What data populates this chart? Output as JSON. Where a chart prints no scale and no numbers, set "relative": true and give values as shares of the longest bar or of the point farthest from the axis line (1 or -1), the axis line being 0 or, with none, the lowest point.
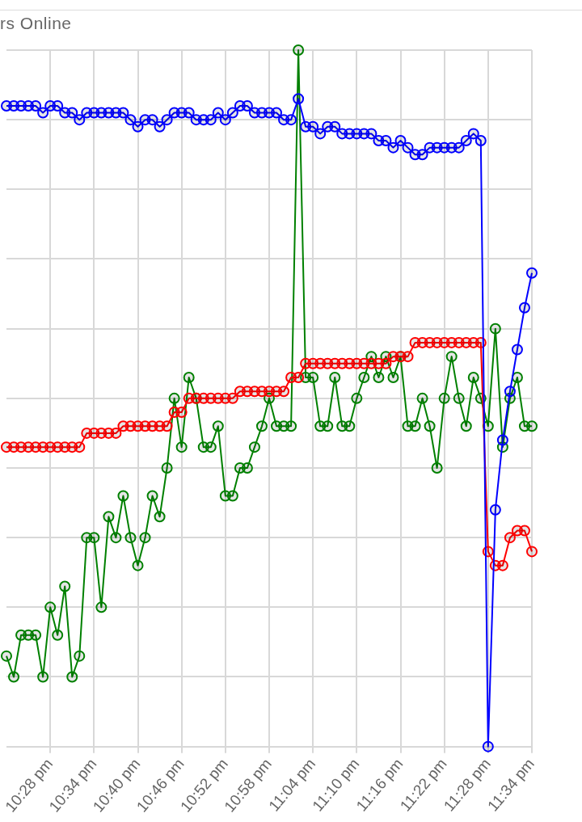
{
  "chart_data": {
    "type": "line",
    "title": "rs Online",
    "relative": true,
    "grid": true,
    "marker": "circle",
    "categories": [
      null,
      null,
      null,
      null,
      null,
      null,
      "10:28 pm",
      null,
      null,
      null,
      null,
      null,
      "10:34 pm",
      null,
      null,
      null,
      null,
      null,
      "10:40 pm",
      null,
      null,
      null,
      null,
      null,
      "10:46 pm",
      null,
      null,
      null,
      null,
      null,
      "10:52 pm",
      null,
      null,
      null,
      null,
      null,
      "10:58 pm",
      null,
      null,
      null,
      null,
      null,
      "11:04 pm",
      null,
      null,
      null,
      null,
      null,
      "11:10 pm",
      null,
      null,
      null,
      null,
      null,
      "11:16 pm",
      null,
      null,
      null,
      null,
      null,
      "11:22 pm",
      null,
      null,
      null,
      null,
      null,
      "11:28 pm",
      null,
      null,
      null,
      null,
      null,
      "11:34 pm"
    ],
    "series": [
      {
        "color": "#0000ff",
        "values": [
          0.92,
          0.92,
          0.92,
          0.92,
          0.92,
          0.91,
          0.92,
          0.92,
          0.91,
          0.91,
          0.9,
          0.91,
          0.91,
          0.91,
          0.91,
          0.91,
          0.91,
          0.9,
          0.89,
          0.9,
          0.9,
          0.89,
          0.9,
          0.91,
          0.91,
          0.91,
          0.9,
          0.9,
          0.9,
          0.91,
          0.9,
          0.91,
          0.92,
          0.92,
          0.91,
          0.91,
          0.91,
          0.91,
          0.9,
          0.9,
          0.93,
          0.89,
          0.89,
          0.88,
          0.89,
          0.89,
          0.88,
          0.88,
          0.88,
          0.88,
          0.88,
          0.87,
          0.87,
          0.86,
          0.87,
          0.86,
          0.85,
          0.85,
          0.86,
          0.86,
          0.86,
          0.86,
          0.86,
          0.87,
          0.88,
          0.87,
          0.0,
          0.34,
          0.44,
          0.51,
          0.57,
          0.63,
          0.68
        ]
      },
      {
        "color": "#ff0000",
        "values": [
          0.43,
          0.43,
          0.43,
          0.43,
          0.43,
          0.43,
          0.43,
          0.43,
          0.43,
          0.43,
          0.43,
          0.45,
          0.45,
          0.45,
          0.45,
          0.45,
          0.46,
          0.46,
          0.46,
          0.46,
          0.46,
          0.46,
          0.46,
          0.48,
          0.48,
          0.5,
          0.5,
          0.5,
          0.5,
          0.5,
          0.5,
          0.5,
          0.51,
          0.51,
          0.51,
          0.51,
          0.51,
          0.51,
          0.51,
          0.53,
          0.53,
          0.55,
          0.55,
          0.55,
          0.55,
          0.55,
          0.55,
          0.55,
          0.55,
          0.55,
          0.55,
          0.55,
          0.55,
          0.56,
          0.56,
          0.56,
          0.58,
          0.58,
          0.58,
          0.58,
          0.58,
          0.58,
          0.58,
          0.58,
          0.58,
          0.58,
          0.28,
          0.26,
          0.26,
          0.3,
          0.31,
          0.31,
          0.28
        ]
      },
      {
        "color": "#008000",
        "values": [
          0.13,
          0.1,
          0.16,
          0.16,
          0.16,
          0.1,
          0.2,
          0.16,
          0.23,
          0.1,
          0.13,
          0.3,
          0.3,
          0.2,
          0.33,
          0.3,
          0.36,
          0.3,
          0.26,
          0.3,
          0.36,
          0.33,
          0.4,
          0.5,
          0.43,
          0.53,
          0.5,
          0.43,
          0.43,
          0.46,
          0.36,
          0.36,
          0.4,
          0.4,
          0.43,
          0.46,
          0.5,
          0.46,
          0.46,
          0.46,
          1.0,
          0.53,
          0.53,
          0.46,
          0.46,
          0.53,
          0.46,
          0.46,
          0.5,
          0.53,
          0.56,
          0.53,
          0.56,
          0.53,
          0.56,
          0.46,
          0.46,
          0.5,
          0.46,
          0.4,
          0.5,
          0.56,
          0.5,
          0.46,
          0.53,
          0.5,
          0.46,
          0.6,
          0.43,
          0.5,
          0.53,
          0.46,
          0.46
        ]
      }
    ]
  }
}
